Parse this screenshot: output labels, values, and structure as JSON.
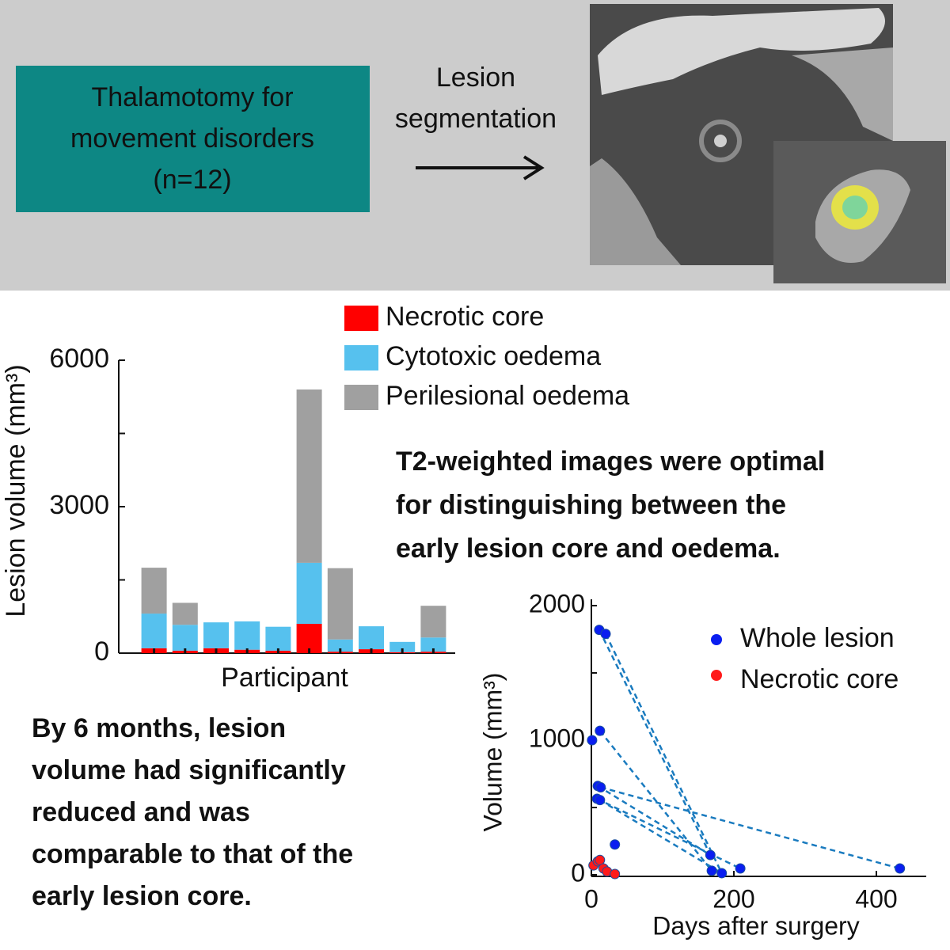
{
  "header": {
    "box_lines": [
      "Thalamotomy for",
      "movement disorders",
      "(n=12)"
    ],
    "arrow_label_lines": [
      "Lesion",
      "segmentation"
    ]
  },
  "notes": {
    "top_right_lines": [
      "T2-weighted images were optimal",
      "for distinguishing between the",
      "early lesion core and oedema."
    ],
    "bottom_left_lines": [
      "By 6 months, lesion",
      "volume had significantly",
      "reduced and was",
      "comparable to that of the",
      "early lesion core."
    ]
  },
  "chart_data": [
    {
      "type": "stacked_bar",
      "y_label": "Lesion volume (mm³)",
      "x_label": "Participant",
      "categories": [
        null,
        null,
        null,
        null,
        null,
        null,
        null,
        null,
        null,
        null
      ],
      "series": [
        {
          "name": "Necrotic core",
          "color": "#ff0000",
          "values": [
            100,
            50,
            100,
            70,
            50,
            600,
            30,
            80,
            20,
            30
          ]
        },
        {
          "name": "Cytotoxic oedema",
          "color": "#56c1ee",
          "values": [
            710,
            530,
            530,
            580,
            490,
            1250,
            250,
            470,
            210,
            290
          ]
        },
        {
          "name": "Perilesional oedema",
          "color": "#a0a0a0",
          "values": [
            940,
            450,
            0,
            0,
            0,
            3550,
            1460,
            0,
            0,
            650
          ]
        }
      ],
      "ylim": [
        0,
        6000
      ],
      "yticks": [
        0,
        {
          "value": 1500,
          "label": null
        },
        3000,
        {
          "value": 4500,
          "label": null
        },
        6000
      ],
      "legend": "top-right"
    },
    {
      "type": "scatter",
      "y_label": "Volume (mm³)",
      "x_label": "Days after surgery",
      "series": [
        {
          "name": "Whole lesion",
          "color": "#0a1ef0",
          "x": [
            11,
            20,
            1,
            12,
            9,
            13,
            8,
            12,
            33,
            167,
            169,
            183,
            209,
            433
          ],
          "values": [
            1820,
            1790,
            1000,
            1070,
            660,
            650,
            565,
            555,
            225,
            147,
            30,
            12,
            47,
            47
          ]
        },
        {
          "name": "Necrotic core",
          "color": "#ff1a1a",
          "x": [
            3,
            9,
            12,
            17,
            22,
            33
          ],
          "values": [
            70,
            100,
            110,
            47,
            24,
            6
          ]
        }
      ],
      "connectors": [
        {
          "color": "#1a7bbf",
          "style": "dashed",
          "x": [
            11,
            167
          ],
          "values": [
            1820,
            147
          ]
        },
        {
          "color": "#1a7bbf",
          "style": "dashed",
          "x": [
            20,
            183
          ],
          "values": [
            1790,
            12
          ]
        },
        {
          "color": "#1a7bbf",
          "style": "dashed",
          "x": [
            12,
            169
          ],
          "values": [
            1070,
            30
          ]
        },
        {
          "color": "#1a7bbf",
          "style": "dashed",
          "x": [
            13,
            433
          ],
          "values": [
            650,
            47
          ]
        },
        {
          "color": "#1a7bbf",
          "style": "dashed",
          "x": [
            9,
            167
          ],
          "values": [
            660,
            147
          ]
        },
        {
          "color": "#1a7bbf",
          "style": "dashed",
          "x": [
            8,
            209
          ],
          "values": [
            565,
            47
          ]
        },
        {
          "color": "#1a7bbf",
          "style": "dashed",
          "x": [
            12,
            183
          ],
          "values": [
            555,
            12
          ]
        }
      ],
      "xlim": [
        0,
        470
      ],
      "ylim": [
        0,
        2000
      ],
      "xticks": [
        0,
        200,
        400
      ],
      "yticks": [
        0,
        {
          "value": 500,
          "label": null
        },
        1000,
        {
          "value": 1500,
          "label": null
        },
        2000
      ],
      "legend": "top-right"
    }
  ]
}
